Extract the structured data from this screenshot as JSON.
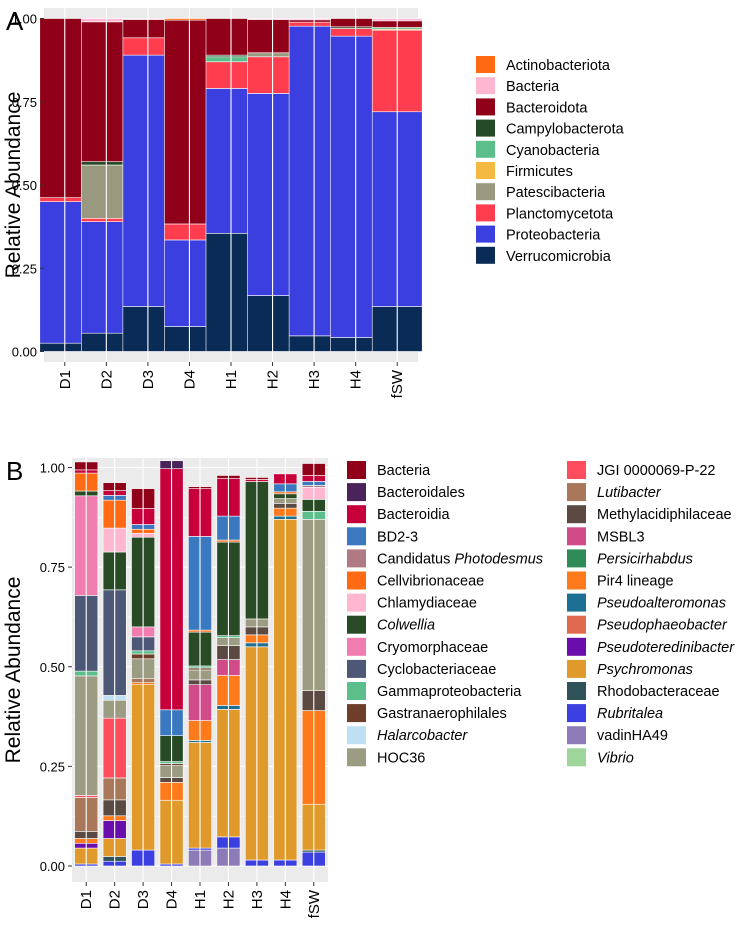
{
  "panels": [
    {
      "letter": "A",
      "chart_data": {
        "type": "bar",
        "stacked": true,
        "categories": [
          "D1",
          "D2",
          "D3",
          "D4",
          "H1",
          "H2",
          "H3",
          "H4",
          "fSW"
        ],
        "ylabel": "Relative Abundance",
        "ylim": [
          0,
          1
        ],
        "yticks": [
          "0.00",
          "0.25",
          "0.50",
          "0.75",
          "1.00"
        ],
        "background": "#EBEBEB",
        "grid": true,
        "legend_position": "right",
        "legend_columns": 1,
        "series": [
          {
            "name": "Verrucomicrobia",
            "color": "#0B2B57",
            "values": [
              0.025,
              0.055,
              0.135,
              0.075,
              0.355,
              0.168,
              0.047,
              0.042,
              0.135
            ]
          },
          {
            "name": "Proteobacteria",
            "color": "#3B3FE0",
            "values": [
              0.425,
              0.335,
              0.755,
              0.26,
              0.435,
              0.607,
              0.93,
              0.905,
              0.585
            ]
          },
          {
            "name": "Planctomycetota",
            "color": "#FF3D4E",
            "values": [
              0.012,
              0.01,
              0.052,
              0.048,
              0.08,
              0.11,
              0.012,
              0.023,
              0.245
            ]
          },
          {
            "name": "Patescibacteria",
            "color": "#99997F",
            "values": [
              0,
              0.16,
              0,
              0,
              0,
              0.012,
              0,
              0,
              0
            ]
          },
          {
            "name": "Firmicutes",
            "color": "#F4B942",
            "values": [
              0,
              0,
              0,
              0,
              0,
              0,
              0,
              0,
              0.003
            ]
          },
          {
            "name": "Cyanobacteria",
            "color": "#5CBE8A",
            "values": [
              0,
              0,
              0,
              0,
              0.015,
              0,
              0,
              0,
              0.005
            ]
          },
          {
            "name": "Campylobacterota",
            "color": "#254A27",
            "values": [
              0,
              0.01,
              0,
              0,
              0.005,
              0,
              0,
              0.005,
              0
            ]
          },
          {
            "name": "Bacteroidota",
            "color": "#910019",
            "values": [
              0.538,
              0.42,
              0.055,
              0.612,
              0.11,
              0.1,
              0.007,
              0.025,
              0.02
            ]
          },
          {
            "name": "Bacteria",
            "color": "#FFB6D0",
            "values": [
              0,
              0.01,
              0.003,
              0,
              0,
              0.003,
              0.004,
              0,
              0.007
            ]
          },
          {
            "name": "Actinobacteriota",
            "color": "#FF6A13",
            "values": [
              0,
              0,
              0,
              0.005,
              0,
              0,
              0,
              0,
              0
            ]
          }
        ],
        "legend_order": [
          "Actinobacteriota",
          "Bacteria",
          "Bacteroidota",
          "Campylobacterota",
          "Cyanobacteria",
          "Firmicutes",
          "Patescibacteria",
          "Planctomycetota",
          "Proteobacteria",
          "Verrucomicrobia"
        ]
      }
    },
    {
      "letter": "B",
      "chart_data": {
        "type": "bar",
        "stacked": true,
        "categories": [
          "D1",
          "D2",
          "D3",
          "D4",
          "H1",
          "H2",
          "H3",
          "H4",
          "fSW"
        ],
        "ylabel": "Relative Abundance",
        "ylim": [
          0,
          1
        ],
        "yticks": [
          "0.00",
          "0.25",
          "0.50",
          "0.75",
          "1.00"
        ],
        "background": "#EBEBEB",
        "grid": true,
        "legend_position": "right",
        "legend_columns": 2,
        "series": [
          {
            "name": "vadinHA49",
            "color": "#8D7BB8",
            "values": [
              0,
              0,
              0,
              0,
              0.04,
              0.045,
              0,
              0,
              0
            ]
          },
          {
            "name": "Rubritalea",
            "color": "#3B3FE0",
            "values": [
              0.005,
              0.012,
              0.04,
              0.005,
              0.005,
              0.028,
              0.015,
              0.015,
              0.035
            ]
          },
          {
            "name": "Rhodobacteraceae",
            "color": "#2F5358",
            "values": [
              0,
              0.012,
              0,
              0,
              0,
              0,
              0,
              0,
              0.005
            ]
          },
          {
            "name": "Psychromonas",
            "color": "#E09A2C",
            "values": [
              0.04,
              0.045,
              0.415,
              0.16,
              0.265,
              0.32,
              0.535,
              0.855,
              0.115
            ]
          },
          {
            "name": "Pseudoteredinibacter",
            "color": "#6A0DAD",
            "values": [
              0.012,
              0.045,
              0,
              0,
              0,
              0,
              0,
              0,
              0
            ]
          },
          {
            "name": "Pseudophaeobacter",
            "color": "#E06A4E",
            "values": [
              0,
              0,
              0,
              0,
              0,
              0,
              0,
              0,
              0
            ]
          },
          {
            "name": "Pseudoalteromonas",
            "color": "#1D6F94",
            "values": [
              0,
              0,
              0,
              0,
              0.005,
              0.01,
              0.01,
              0.008,
              0
            ]
          },
          {
            "name": "Pir4 lineage",
            "color": "#FF7A1A",
            "values": [
              0.012,
              0.012,
              0.005,
              0.045,
              0.05,
              0.075,
              0.02,
              0.02,
              0.235
            ]
          },
          {
            "name": "Persicirhabdus",
            "color": "#2E8B57",
            "values": [
              0,
              0,
              0,
              0,
              0,
              0,
              0,
              0,
              0
            ]
          },
          {
            "name": "MSBL3",
            "color": "#D14B89",
            "values": [
              0,
              0,
              0,
              0,
              0.09,
              0.04,
              0,
              0,
              0
            ]
          },
          {
            "name": "Methylacidiphilaceae",
            "color": "#5B4A42",
            "values": [
              0.018,
              0.04,
              0,
              0.012,
              0.012,
              0.035,
              0.02,
              0.012,
              0.05
            ]
          },
          {
            "name": "Lutibacter",
            "color": "#A9775A",
            "values": [
              0.085,
              0.055,
              0.01,
              0,
              0,
              0,
              0,
              0,
              0
            ]
          },
          {
            "name": "JGI 0000069-P-22",
            "color": "#FF4D5E",
            "values": [
              0.005,
              0.15,
              0,
              0,
              0,
              0,
              0,
              0,
              0
            ]
          },
          {
            "name": "HOC36",
            "color": "#9C9C82",
            "values": [
              0.3,
              0.045,
              0.05,
              0.03,
              0.025,
              0.02,
              0.02,
              0.012,
              0.43
            ]
          },
          {
            "name": "Halarcobacter",
            "color": "#BFE0F2",
            "values": [
              0,
              0.012,
              0,
              0,
              0,
              0,
              0,
              0,
              0
            ]
          },
          {
            "name": "Gastranaerophilales",
            "color": "#6E3E2A",
            "values": [
              0,
              0,
              0.012,
              0.005,
              0.005,
              0,
              0,
              0,
              0
            ]
          },
          {
            "name": "Gammaproteobacteria",
            "color": "#5CBE8A",
            "values": [
              0.012,
              0,
              0.008,
              0.005,
              0.005,
              0.005,
              0,
              0,
              0.02
            ]
          },
          {
            "name": "Cyclobacteriaceae",
            "color": "#4D5876",
            "values": [
              0.19,
              0.265,
              0.035,
              0,
              0,
              0,
              0,
              0,
              0
            ]
          },
          {
            "name": "Cryomorphaceae",
            "color": "#F07CB0",
            "values": [
              0.25,
              0,
              0.025,
              0,
              0,
              0,
              0,
              0,
              0
            ]
          },
          {
            "name": "Colwellia",
            "color": "#284A24",
            "values": [
              0.012,
              0.095,
              0.225,
              0.065,
              0.085,
              0.235,
              0.345,
              0.012,
              0.03
            ]
          },
          {
            "name": "Chlamydiaceae",
            "color": "#FFB6D0",
            "values": [
              0,
              0.06,
              0.01,
              0,
              0,
              0,
              0,
              0,
              0.03
            ]
          },
          {
            "name": "Cellvibrionaceae",
            "color": "#FF6A13",
            "values": [
              0.045,
              0.07,
              0.01,
              0,
              0.005,
              0.005,
              0,
              0.005,
              0
            ]
          },
          {
            "name": "Candidatus Photodesmus",
            "color": "#B07A84",
            "values": [
              0,
              0,
              0,
              0,
              0,
              0,
              0,
              0,
              0.005
            ]
          },
          {
            "name": "BD2-3",
            "color": "#3A78C0",
            "values": [
              0,
              0.012,
              0.012,
              0.065,
              0.235,
              0.06,
              0,
              0.02,
              0.01
            ]
          },
          {
            "name": "Bacteroidia",
            "color": "#C7003B",
            "values": [
              0.008,
              0.012,
              0.04,
              0.605,
              0.12,
              0.095,
              0.005,
              0.025,
              0.015
            ]
          },
          {
            "name": "Bacteroidales",
            "color": "#4A235A",
            "values": [
              0,
              0,
              0,
              0.02,
              0,
              0,
              0,
              0,
              0
            ]
          },
          {
            "name": "Bacteria",
            "color": "#910019",
            "values": [
              0.02,
              0.02,
              0.05,
              0,
              0.005,
              0.007,
              0.005,
              0,
              0.03
            ]
          },
          {
            "name": "Vibrio",
            "color": "#9ED59A",
            "values": [
              0,
              0,
              0,
              0,
              0,
              0,
              0,
              0,
              0
            ]
          }
        ],
        "legend_col1": [
          {
            "name": "Bacteria",
            "italic": false
          },
          {
            "name": "Bacteroidales",
            "italic": false
          },
          {
            "name": "Bacteroidia",
            "italic": false
          },
          {
            "name": "BD2-3",
            "italic": false
          },
          {
            "name": "Candidatus Photodesmus",
            "prefix": "Candidatus ",
            "rest": "Photodesmus",
            "italic": "partial"
          },
          {
            "name": "Cellvibrionaceae",
            "italic": false
          },
          {
            "name": "Chlamydiaceae",
            "italic": false
          },
          {
            "name": "Colwellia",
            "italic": true
          },
          {
            "name": "Cryomorphaceae",
            "italic": false
          },
          {
            "name": "Cyclobacteriaceae",
            "italic": false
          },
          {
            "name": "Gammaproteobacteria",
            "italic": false
          },
          {
            "name": "Gastranaerophilales",
            "italic": false
          },
          {
            "name": "Halarcobacter",
            "italic": true
          },
          {
            "name": "HOC36",
            "italic": false
          }
        ],
        "legend_col2": [
          {
            "name": "JGI 0000069-P-22",
            "italic": false
          },
          {
            "name": "Lutibacter",
            "italic": true
          },
          {
            "name": "Methylacidiphilaceae",
            "italic": false
          },
          {
            "name": "MSBL3",
            "italic": false
          },
          {
            "name": "Persicirhabdus",
            "italic": true
          },
          {
            "name": "Pir4 lineage",
            "italic": false
          },
          {
            "name": "Pseudoalteromonas",
            "italic": true
          },
          {
            "name": "Pseudophaeobacter",
            "italic": true
          },
          {
            "name": "Pseudoteredinibacter",
            "italic": true
          },
          {
            "name": "Psychromonas",
            "italic": true
          },
          {
            "name": "Rhodobacteraceae",
            "italic": false
          },
          {
            "name": "Rubritalea",
            "italic": true
          },
          {
            "name": "vadinHA49",
            "italic": false
          },
          {
            "name": "Vibrio",
            "italic": true
          }
        ]
      }
    }
  ]
}
